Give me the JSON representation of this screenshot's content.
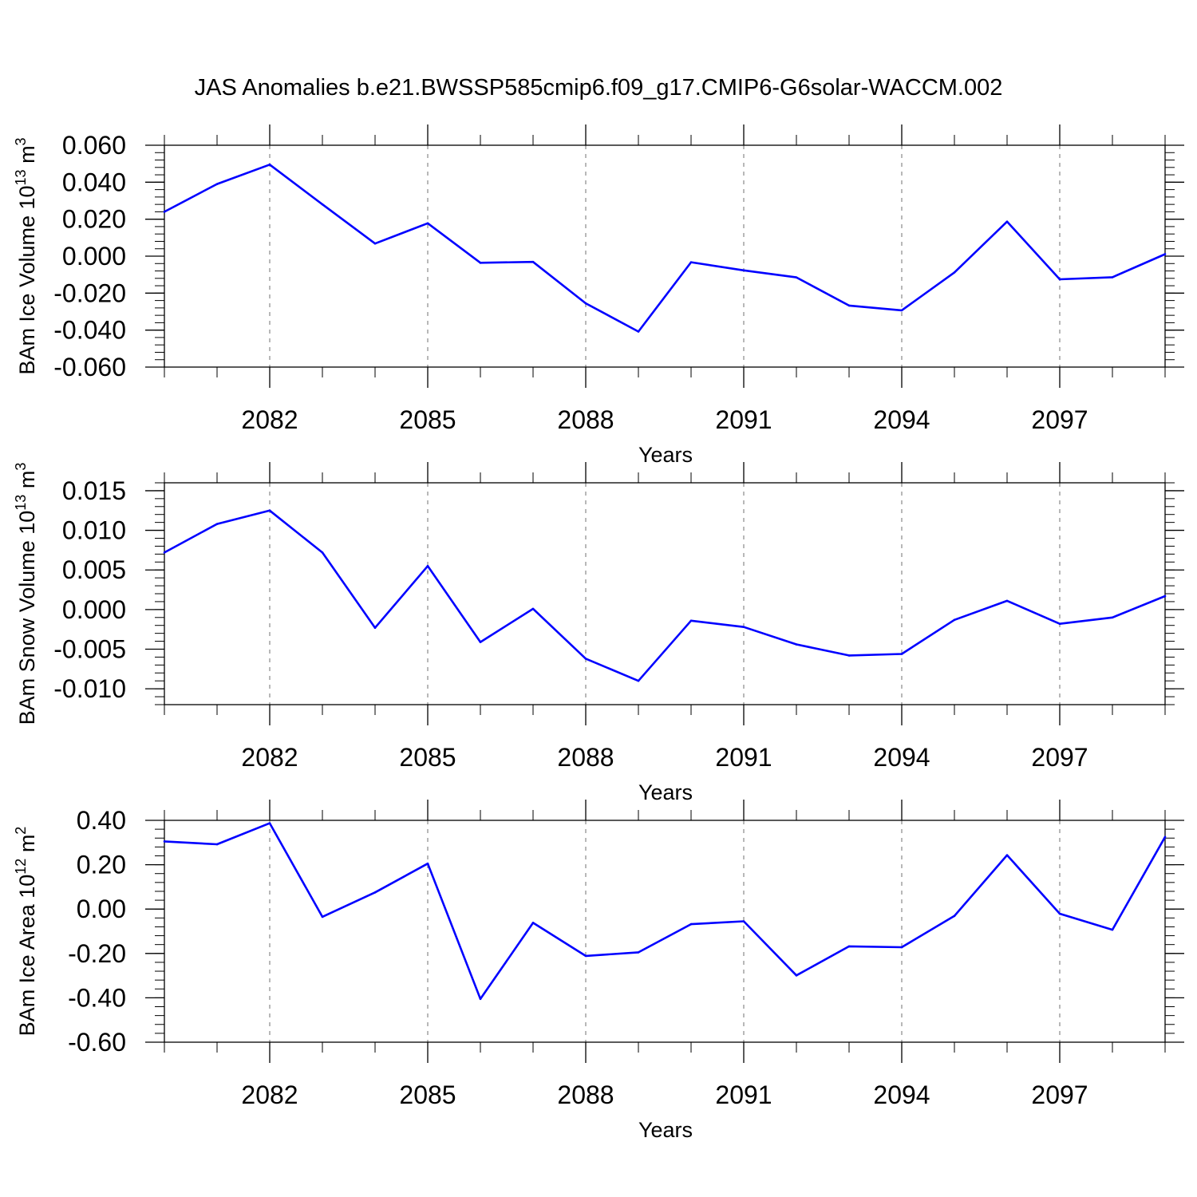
{
  "title": "JAS Anomalies b.e21.BWSSP585cmip6.f09_g17.CMIP6-G6solar-WACCM.002",
  "colors": {
    "line": "#0000ff",
    "axis": "#000000",
    "grid": "#888888"
  },
  "chart_data": [
    {
      "type": "line",
      "xlabel": "Years",
      "ylabel": {
        "text": "BAm Ice Volume 10",
        "exp": "13",
        "unit": " m",
        "unit_exp": "3"
      },
      "xlim": [
        2080,
        2099
      ],
      "ylim": [
        -0.06,
        0.06
      ],
      "x_ticks": [
        2082,
        2085,
        2088,
        2091,
        2094,
        2097
      ],
      "x_tick_labels": [
        "2082",
        "2085",
        "2088",
        "2091",
        "2094",
        "2097"
      ],
      "y_ticks": [
        0.06,
        0.04,
        0.02,
        0.0,
        -0.02,
        -0.04,
        -0.06
      ],
      "y_tick_labels": [
        "0.060",
        "0.040",
        "0.020",
        "0.000",
        "-0.020",
        "-0.040",
        "-0.060"
      ],
      "grid": "vertical dashed at major x ticks",
      "x": [
        2080,
        2081,
        2082,
        2083,
        2084,
        2085,
        2086,
        2087,
        2088,
        2089,
        2090,
        2091,
        2092,
        2093,
        2094,
        2095,
        2096,
        2097,
        2098,
        2099
      ],
      "values": [
        0.024,
        0.039,
        0.0495,
        0.028,
        0.0068,
        0.0178,
        -0.0036,
        -0.0031,
        -0.0255,
        -0.0408,
        -0.0033,
        -0.0077,
        -0.0115,
        -0.0267,
        -0.0293,
        -0.0088,
        0.0187,
        -0.0125,
        -0.0114,
        0.0011
      ]
    },
    {
      "type": "line",
      "xlabel": "Years",
      "ylabel": {
        "text": "BAm Snow Volume 10",
        "exp": "13",
        "unit": " m",
        "unit_exp": "3"
      },
      "xlim": [
        2080,
        2099
      ],
      "ylim": [
        -0.012,
        0.016
      ],
      "x_ticks": [
        2082,
        2085,
        2088,
        2091,
        2094,
        2097
      ],
      "x_tick_labels": [
        "2082",
        "2085",
        "2088",
        "2091",
        "2094",
        "2097"
      ],
      "y_ticks": [
        0.015,
        0.01,
        0.005,
        0.0,
        -0.005,
        -0.01
      ],
      "y_tick_labels": [
        "0.015",
        "0.010",
        "0.005",
        "0.000",
        "-0.005",
        "-0.010"
      ],
      "grid": "vertical dashed at major x ticks",
      "x": [
        2080,
        2081,
        2082,
        2083,
        2084,
        2085,
        2086,
        2087,
        2088,
        2089,
        2090,
        2091,
        2092,
        2093,
        2094,
        2095,
        2096,
        2097,
        2098,
        2099
      ],
      "values": [
        0.0072,
        0.0108,
        0.0125,
        0.0072,
        -0.0023,
        0.0055,
        -0.0041,
        0.0001,
        -0.0062,
        -0.009,
        -0.0014,
        -0.0022,
        -0.0044,
        -0.0058,
        -0.0056,
        -0.0013,
        0.0011,
        -0.0018,
        -0.001,
        0.0017
      ]
    },
    {
      "type": "line",
      "xlabel": "Years",
      "ylabel": {
        "text": "BAm Ice Area 10",
        "exp": "12",
        "unit": " m",
        "unit_exp": "2"
      },
      "xlim": [
        2080,
        2099
      ],
      "ylim": [
        -0.6,
        0.4
      ],
      "x_ticks": [
        2082,
        2085,
        2088,
        2091,
        2094,
        2097
      ],
      "x_tick_labels": [
        "2082",
        "2085",
        "2088",
        "2091",
        "2094",
        "2097"
      ],
      "y_ticks": [
        0.4,
        0.2,
        0.0,
        -0.2,
        -0.4,
        -0.6
      ],
      "y_tick_labels": [
        "0.40",
        "0.20",
        "0.00",
        "-0.20",
        "-0.40",
        "-0.60"
      ],
      "grid": "vertical dashed at major x ticks",
      "x": [
        2080,
        2081,
        2082,
        2083,
        2084,
        2085,
        2086,
        2087,
        2088,
        2089,
        2090,
        2091,
        2092,
        2093,
        2094,
        2095,
        2096,
        2097,
        2098,
        2099
      ],
      "values": [
        0.305,
        0.292,
        0.387,
        -0.035,
        0.075,
        0.205,
        -0.405,
        -0.062,
        -0.211,
        -0.195,
        -0.068,
        -0.055,
        -0.299,
        -0.168,
        -0.172,
        -0.031,
        0.243,
        -0.021,
        -0.093,
        0.325
      ]
    }
  ]
}
